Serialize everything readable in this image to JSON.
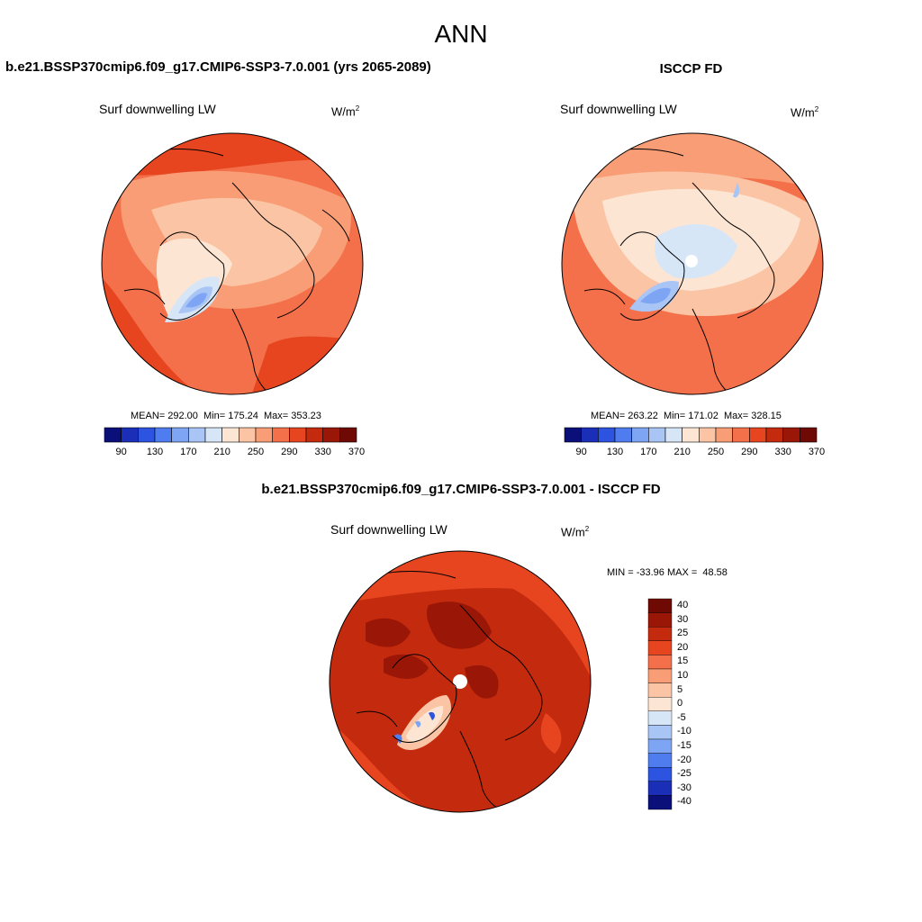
{
  "title": "ANN",
  "panels": {
    "model": {
      "title": "b.e21.BSSP370cmip6.f09_g17.CMIP6-SSP3-7.0.001 (yrs 2065-2089)",
      "variable": "Surf downwelling LW",
      "units_base": "W/m",
      "units_exp": "2",
      "stats": "MEAN= 292.00  Min= 175.24  Max= 353.23",
      "mean": 292.0,
      "min": 175.24,
      "max": 353.23
    },
    "obs": {
      "title": "ISCCP FD",
      "variable": "Surf downwelling LW",
      "units_base": "W/m",
      "units_exp": "2",
      "stats": "MEAN= 263.22  Min= 171.02  Max= 328.15",
      "mean": 263.22,
      "min": 171.02,
      "max": 328.15
    },
    "diff": {
      "title": "b.e21.BSSP370cmip6.f09_g17.CMIP6-SSP3-7.0.001 - ISCCP FD",
      "variable": "Surf downwelling LW",
      "units_base": "W/m",
      "units_exp": "2",
      "stats": "MIN = -33.96 MAX =  48.58",
      "min": -33.96,
      "max": 48.58
    }
  },
  "colorbar_abs": {
    "colors": [
      "#0a0f7a",
      "#1a2eb8",
      "#2c54e0",
      "#4f7df0",
      "#7ea5f4",
      "#a9c5f5",
      "#d6e6f7",
      "#fde5d3",
      "#fbc4a4",
      "#f89d75",
      "#f4704a",
      "#e6451f",
      "#c42a0e",
      "#9a1606",
      "#6e0903"
    ],
    "tick_labels": [
      "90",
      "130",
      "170",
      "210",
      "250",
      "290",
      "330",
      "370"
    ]
  },
  "colorbar_diff": {
    "colors": [
      "#6e0903",
      "#9a1606",
      "#c42a0e",
      "#e6451f",
      "#f4704a",
      "#f89d75",
      "#fbc4a4",
      "#fde5d3",
      "#d6e6f7",
      "#a9c5f5",
      "#7ea5f4",
      "#4f7df0",
      "#2c54e0",
      "#1a2eb8",
      "#0a0f7a"
    ],
    "tick_labels": [
      "40",
      "30",
      "25",
      "20",
      "15",
      "10",
      "5",
      "0",
      "-5",
      "-10",
      "-15",
      "-20",
      "-25",
      "-30",
      "-40"
    ]
  }
}
